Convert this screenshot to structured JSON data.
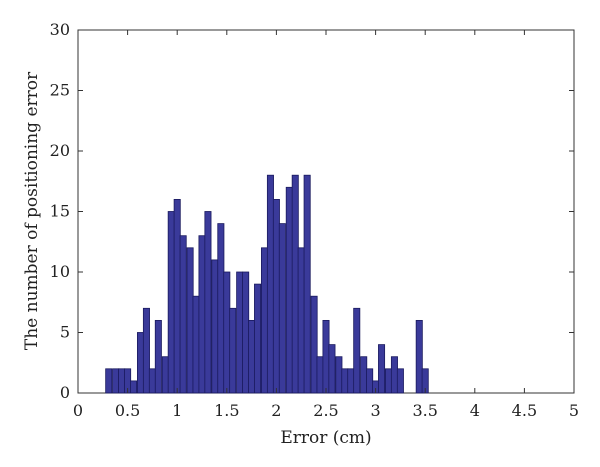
{
  "chart_data": {
    "type": "bar",
    "title": "",
    "xlabel": "Error (cm)",
    "ylabel": "The number of positioning error",
    "xlim": [
      0,
      5
    ],
    "ylim": [
      0,
      30
    ],
    "xticks": [
      0,
      0.5,
      1,
      1.5,
      2,
      2.5,
      3,
      3.5,
      4,
      4.5,
      5
    ],
    "xtick_labels": [
      "0",
      "0.5",
      "1",
      "1.5",
      "2",
      "2.5",
      "3",
      "3.5",
      "4",
      "4.5",
      "5"
    ],
    "yticks": [
      0,
      5,
      10,
      15,
      20,
      25,
      30
    ],
    "ytick_labels": [
      "0",
      "5",
      "10",
      "15",
      "20",
      "25",
      "30"
    ],
    "bin_width": 0.0625,
    "bin_centers": [
      0.31,
      0.38,
      0.44,
      0.5,
      0.56,
      0.63,
      0.69,
      0.75,
      0.81,
      0.88,
      0.94,
      1.0,
      1.06,
      1.13,
      1.19,
      1.25,
      1.31,
      1.38,
      1.44,
      1.5,
      1.56,
      1.63,
      1.69,
      1.75,
      1.81,
      1.88,
      1.94,
      2.0,
      2.06,
      2.13,
      2.19,
      2.25,
      2.31,
      2.38,
      2.44,
      2.5,
      2.56,
      2.63,
      2.69,
      2.75,
      2.81,
      2.88,
      2.94,
      3.0,
      3.06,
      3.13,
      3.19,
      3.25,
      3.31,
      3.38,
      3.44,
      3.5,
      3.56,
      3.63,
      3.69,
      3.75,
      3.81,
      3.88,
      3.94,
      4.0,
      4.06,
      4.13,
      4.19,
      4.25,
      4.31,
      4.38
    ],
    "values": [
      2,
      2,
      2,
      2,
      1,
      5,
      7,
      2,
      6,
      3,
      15,
      16,
      13,
      12,
      8,
      13,
      15,
      11,
      14,
      10,
      7,
      10,
      10,
      6,
      9,
      12,
      18,
      16,
      14,
      17,
      18,
      12,
      18,
      8,
      3,
      6,
      4,
      3,
      2,
      2,
      7,
      3,
      2,
      1,
      4,
      2,
      3,
      2,
      0,
      0,
      6,
      2,
      0,
      0,
      0,
      0,
      0,
      0,
      0,
      0,
      0,
      0,
      0,
      0,
      0,
      0
    ],
    "grid": false,
    "legend": "none",
    "colors": {
      "bar_fill": "#3a3a9a",
      "bar_edge": "#1a1a5e",
      "axis": "#333333"
    }
  }
}
